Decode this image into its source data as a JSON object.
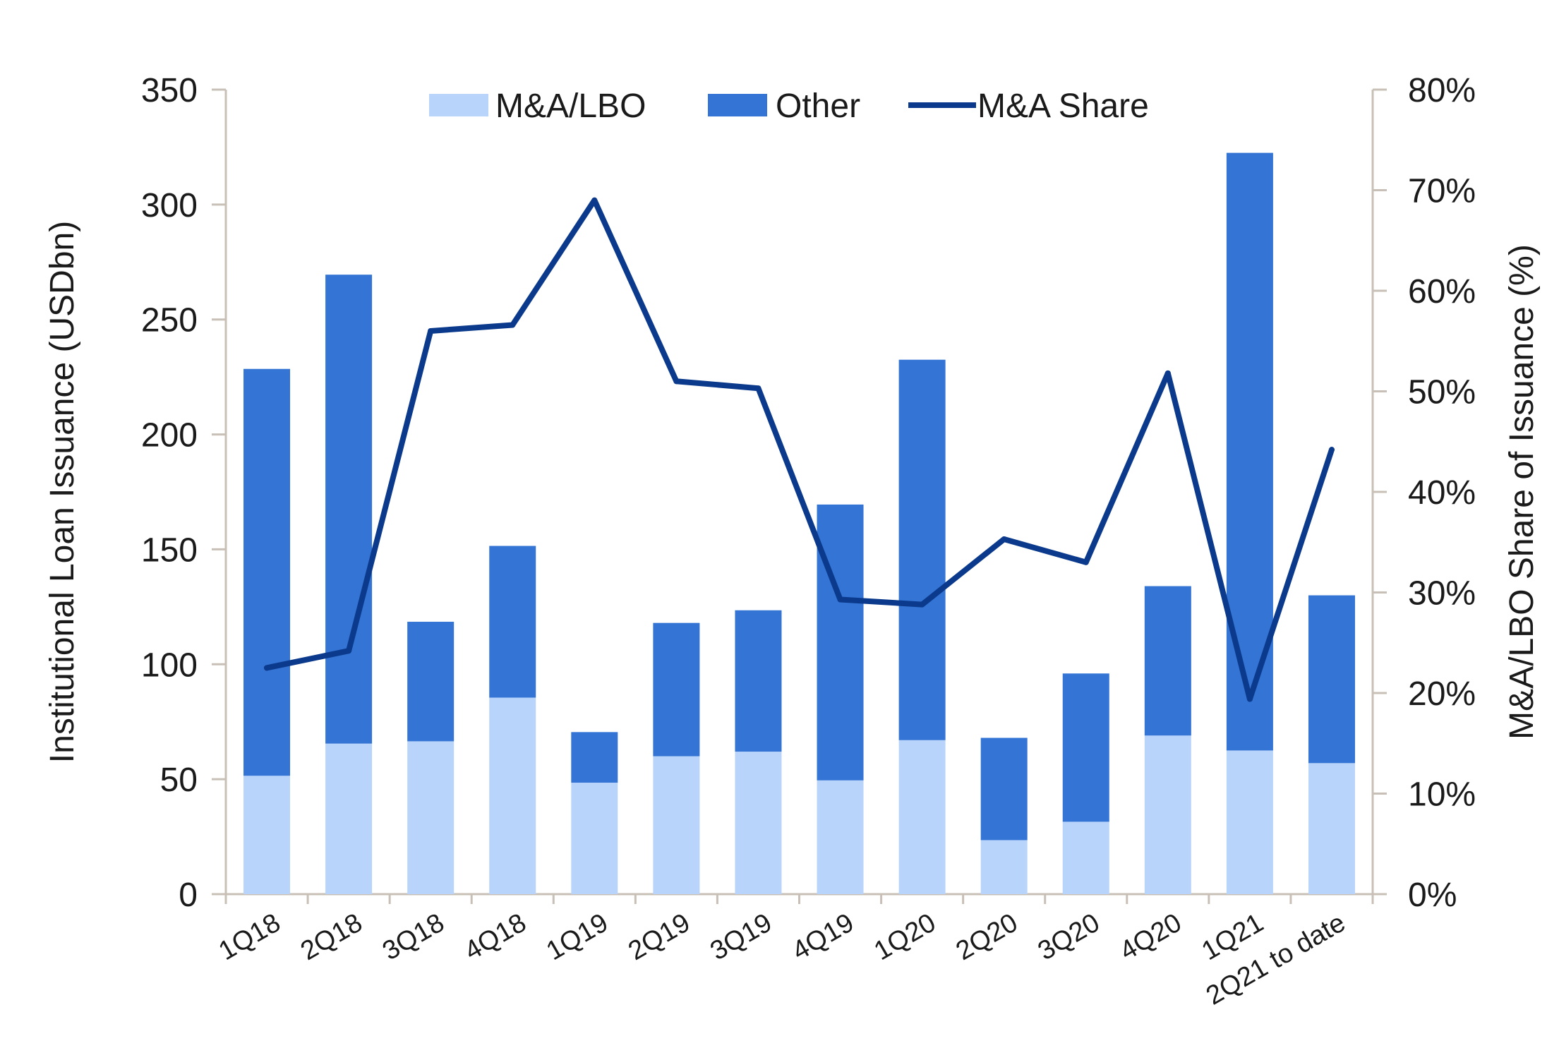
{
  "chart_data": {
    "type": "bar",
    "stacked": true,
    "categories": [
      "1Q18",
      "2Q18",
      "3Q18",
      "4Q18",
      "1Q19",
      "2Q19",
      "3Q19",
      "4Q19",
      "1Q20",
      "2Q20",
      "3Q20",
      "4Q20",
      "1Q21",
      "2Q21 to date"
    ],
    "series": [
      {
        "name": "M&A/LBO",
        "kind": "bar",
        "axis": "left",
        "color": "#b9d4fb",
        "values": [
          51.5,
          65.5,
          66.5,
          85.5,
          48.5,
          60,
          62,
          49.5,
          67,
          23.5,
          31.5,
          69,
          62.5,
          57
        ]
      },
      {
        "name": "Other",
        "kind": "bar",
        "axis": "left",
        "color": "#3374d4",
        "values": [
          177,
          204,
          52,
          66,
          22,
          58,
          61.5,
          120,
          165.5,
          44.5,
          64.5,
          65,
          260,
          73
        ]
      },
      {
        "name": "M&A Share",
        "kind": "line",
        "axis": "right",
        "color": "#0b3a8c",
        "values": [
          22.5,
          24.2,
          56.0,
          56.6,
          69.0,
          51.0,
          50.3,
          29.3,
          28.8,
          35.3,
          33.0,
          51.8,
          19.4,
          44.2
        ]
      }
    ],
    "y_left": {
      "label": "Institutional Loan Issuance (USDbn)",
      "lim": [
        0,
        350
      ],
      "ticks": [
        0,
        50,
        100,
        150,
        200,
        250,
        300,
        350
      ],
      "tick_labels": [
        "0",
        "50",
        "100",
        "150",
        "200",
        "250",
        "300",
        "350"
      ]
    },
    "y_right": {
      "label": "M&A/LBO Share of Issuance (%)",
      "lim": [
        0,
        80
      ],
      "ticks": [
        0,
        10,
        20,
        30,
        40,
        50,
        60,
        70,
        80
      ],
      "tick_labels": [
        "0%",
        "10%",
        "20%",
        "30%",
        "40%",
        "50%",
        "60%",
        "70%",
        "80%"
      ]
    },
    "axis_color": "#c8c0b6",
    "grid": false,
    "legend": {
      "position": "top-center",
      "entries": [
        "M&A/LBO",
        "Other",
        "M&A Share"
      ]
    }
  }
}
